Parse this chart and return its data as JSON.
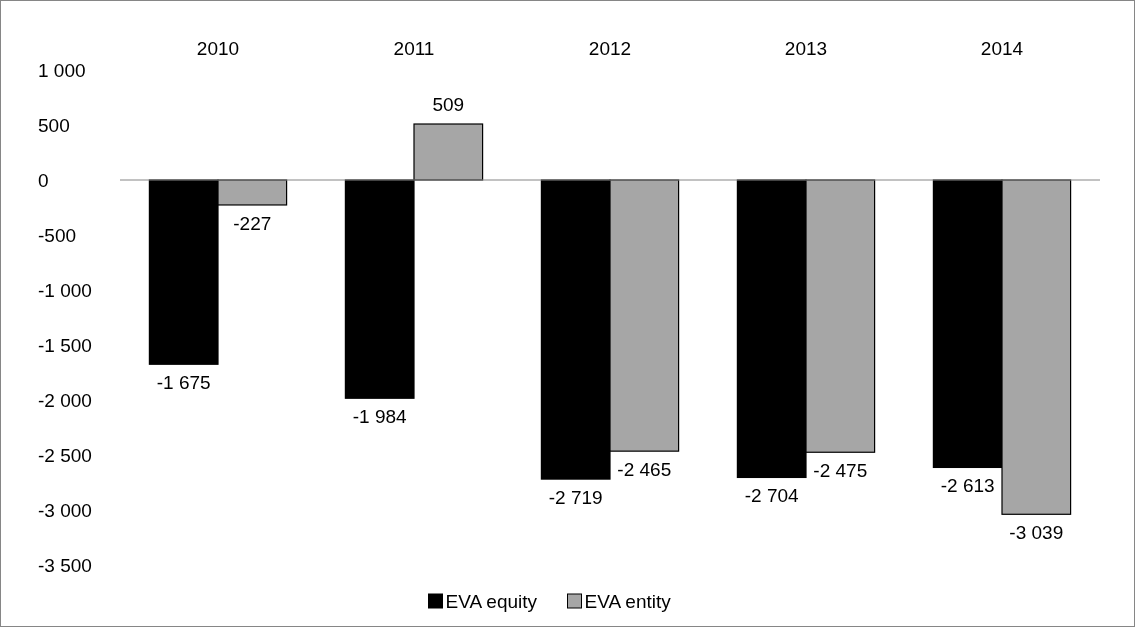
{
  "chart_data": {
    "type": "bar",
    "categories": [
      "2010",
      "2011",
      "2012",
      "2013",
      "2014"
    ],
    "series": [
      {
        "name": "EVA equity",
        "color": "#000000",
        "values": [
          -1675,
          -1984,
          -2719,
          -2704,
          -2613
        ],
        "value_labels": [
          "-1 675",
          "-1 984",
          "-2 719",
          "-2 704",
          "-2 613"
        ]
      },
      {
        "name": "EVA entity",
        "color": "#a6a6a6",
        "values": [
          -227,
          509,
          -2465,
          -2475,
          -3039
        ],
        "value_labels": [
          "-227",
          "509",
          "-2 465",
          "-2 475",
          "-3 039"
        ]
      }
    ],
    "ylim": [
      -3500,
      1000
    ],
    "yticks": [
      {
        "value": 1000,
        "label": "1 000"
      },
      {
        "value": 500,
        "label": "500"
      },
      {
        "value": 0,
        "label": "0"
      },
      {
        "value": -500,
        "label": "-500"
      },
      {
        "value": -1000,
        "label": "-1 000"
      },
      {
        "value": -1500,
        "label": "-1 500"
      },
      {
        "value": -2000,
        "label": "-2 000"
      },
      {
        "value": -2500,
        "label": "-2 500"
      },
      {
        "value": -3000,
        "label": "-3 000"
      },
      {
        "value": -3500,
        "label": "-3 500"
      }
    ],
    "legend": "bottom"
  }
}
